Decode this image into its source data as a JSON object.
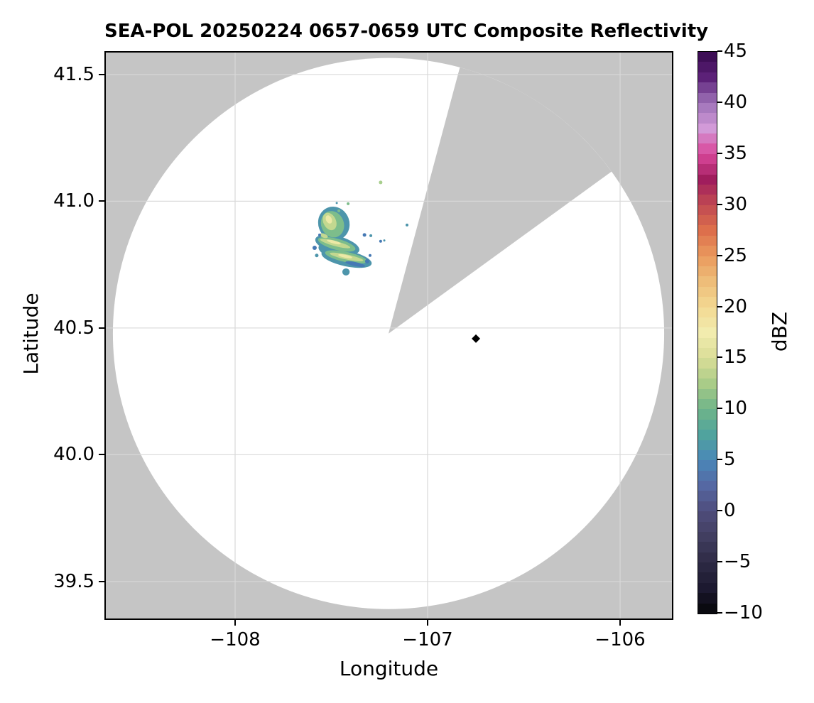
{
  "figure": {
    "title": "SEA-POL 20250224 0657-0659 UTC Composite Reflectivity",
    "xlabel": "Longitude",
    "ylabel": "Latitude",
    "scan_background_color": "#ffffff",
    "no_data_color": "#c5c5c5",
    "grid_color": "#d9d9d9",
    "border_color": "#000000"
  },
  "axes": {
    "x_ticks": [
      {
        "label": "−108",
        "value": -108
      },
      {
        "label": "−107",
        "value": -107
      },
      {
        "label": "−106",
        "value": -106
      }
    ],
    "y_ticks": [
      {
        "label": "41.5",
        "value": 41.5
      },
      {
        "label": "41.0",
        "value": 41.0
      },
      {
        "label": "40.5",
        "value": 40.5
      },
      {
        "label": "40.0",
        "value": 40.0
      },
      {
        "label": "39.5",
        "value": 39.5
      }
    ]
  },
  "colorbar": {
    "label": "dBZ",
    "min": -10,
    "max": 45,
    "ticks": [
      {
        "label": "45",
        "value": 45
      },
      {
        "label": "40",
        "value": 40
      },
      {
        "label": "35",
        "value": 35
      },
      {
        "label": "30",
        "value": 30
      },
      {
        "label": "25",
        "value": 25
      },
      {
        "label": "20",
        "value": 20
      },
      {
        "label": "15",
        "value": 15
      },
      {
        "label": "10",
        "value": 10
      },
      {
        "label": "5",
        "value": 5
      },
      {
        "label": "0",
        "value": 0
      },
      {
        "label": "−5",
        "value": -5
      },
      {
        "label": "−10",
        "value": -10
      }
    ],
    "stops": [
      {
        "v": 45,
        "c": "#36094e"
      },
      {
        "v": 42.5,
        "c": "#5c2178"
      },
      {
        "v": 40,
        "c": "#9e72b8"
      },
      {
        "v": 37.5,
        "c": "#d29ad8"
      },
      {
        "v": 35,
        "c": "#d9479b"
      },
      {
        "v": 32.5,
        "c": "#a01d5d"
      },
      {
        "v": 30,
        "c": "#c04a52"
      },
      {
        "v": 27.5,
        "c": "#dd6f4c"
      },
      {
        "v": 25,
        "c": "#ea9a5e"
      },
      {
        "v": 22.5,
        "c": "#eebd79"
      },
      {
        "v": 20,
        "c": "#f3d992"
      },
      {
        "v": 17.5,
        "c": "#f2ecae"
      },
      {
        "v": 15,
        "c": "#dadd97"
      },
      {
        "v": 12.5,
        "c": "#a9cc88"
      },
      {
        "v": 10,
        "c": "#6fb489"
      },
      {
        "v": 7.5,
        "c": "#50a39e"
      },
      {
        "v": 5,
        "c": "#4a87b8"
      },
      {
        "v": 2.5,
        "c": "#5568a3"
      },
      {
        "v": 0,
        "c": "#4f4d7c"
      },
      {
        "v": -2.5,
        "c": "#413e60"
      },
      {
        "v": -5,
        "c": "#2e2a45"
      },
      {
        "v": -7.5,
        "c": "#1c1930"
      },
      {
        "v": -10,
        "c": "#060608"
      }
    ]
  },
  "chart_data": {
    "type": "heatmap",
    "title": "SEA-POL 20250224 0657-0659 UTC Composite Reflectivity",
    "xlabel": "Longitude",
    "ylabel": "Latitude",
    "xlim": [
      -108.68,
      -105.72
    ],
    "ylim": [
      39.35,
      41.59
    ],
    "grid": true,
    "colorbar_label": "dBZ",
    "colorbar_range": [
      -10,
      45
    ],
    "radar": {
      "center_lon": -107.203,
      "center_lat": 40.478,
      "range_deg_lon": 1.432,
      "range_deg_lat": 1.087,
      "blanked_sector_azimuth_deg": [
        15,
        54
      ]
    },
    "site_marker": {
      "lon": -106.749,
      "lat": 40.458
    },
    "echo_region": {
      "lon_range": [
        -107.61,
        -107.21
      ],
      "lat_range": [
        40.7,
        41.0
      ],
      "max_dbz": 17,
      "typical_dbz_range": [
        4,
        17
      ]
    },
    "echo_layers": [
      {
        "name": "teal-base",
        "dbz": 6,
        "color": "#4d95ab",
        "ellipses": [
          {
            "lon": -107.487,
            "lat": 40.912,
            "rlon": 0.081,
            "rlat": 0.067,
            "rot": -20
          },
          {
            "lon": -107.469,
            "lat": 40.828,
            "rlon": 0.118,
            "rlat": 0.034,
            "rot": 15
          },
          {
            "lon": -107.421,
            "lat": 40.774,
            "rlon": 0.133,
            "rlat": 0.031,
            "rot": 12
          },
          {
            "lon": -107.517,
            "lat": 40.808,
            "rlon": 0.052,
            "rlat": 0.022,
            "rot": 20
          },
          {
            "lon": -107.424,
            "lat": 40.721,
            "rlon": 0.019,
            "rlat": 0.014,
            "rot": 0
          }
        ]
      },
      {
        "name": "green-mid",
        "dbz": 10,
        "color": "#7dbd8b",
        "ellipses": [
          {
            "lon": -107.494,
            "lat": 40.909,
            "rlon": 0.059,
            "rlat": 0.053,
            "rot": -20
          },
          {
            "lon": -107.472,
            "lat": 40.83,
            "rlon": 0.1,
            "rlat": 0.022,
            "rot": 15
          },
          {
            "lon": -107.424,
            "lat": 40.78,
            "rlon": 0.111,
            "rlat": 0.02,
            "rot": 12
          }
        ]
      },
      {
        "name": "yellow-green-streaks",
        "dbz": 14,
        "color": "#c3d890",
        "ellipses": [
          {
            "lon": -107.509,
            "lat": 40.92,
            "rlon": 0.033,
            "rlat": 0.036,
            "rot": -25
          },
          {
            "lon": -107.48,
            "lat": 40.833,
            "rlon": 0.081,
            "rlat": 0.01,
            "rot": 15
          },
          {
            "lon": -107.421,
            "lat": 40.78,
            "rlon": 0.089,
            "rlat": 0.01,
            "rot": 12
          },
          {
            "lon": -107.539,
            "lat": 40.864,
            "rlon": 0.022,
            "rlat": 0.008,
            "rot": 20
          }
        ]
      },
      {
        "name": "pale-yellow-cores",
        "dbz": 17,
        "color": "#ece9a6",
        "ellipses": [
          {
            "lon": -107.487,
            "lat": 40.839,
            "rlon": 0.037,
            "rlat": 0.006,
            "rot": 15
          },
          {
            "lon": -107.428,
            "lat": 40.783,
            "rlon": 0.037,
            "rlat": 0.006,
            "rot": 12
          },
          {
            "lon": -107.513,
            "lat": 40.928,
            "rlon": 0.015,
            "rlat": 0.017,
            "rot": -25
          }
        ]
      },
      {
        "name": "blue-fringe",
        "dbz": 4,
        "color": "#4679b4",
        "ellipses": [
          {
            "lon": -107.376,
            "lat": 40.752,
            "rlon": 0.052,
            "rlat": 0.008,
            "rot": 12
          }
        ]
      }
    ],
    "echo_dots": [
      {
        "lon": -107.328,
        "lat": 40.867,
        "r": 2.5,
        "color": "#4679b4"
      },
      {
        "lon": -107.244,
        "lat": 40.842,
        "r": 2.0,
        "color": "#4679b4"
      },
      {
        "lon": -107.314,
        "lat": 40.763,
        "r": 3.0,
        "color": "#4679b4"
      },
      {
        "lon": -107.343,
        "lat": 40.746,
        "r": 2.5,
        "color": "#4679b4"
      },
      {
        "lon": -107.299,
        "lat": 40.786,
        "r": 2.0,
        "color": "#4679b4"
      },
      {
        "lon": -107.424,
        "lat": 40.718,
        "r": 2.5,
        "color": "#4d95ab"
      },
      {
        "lon": -107.587,
        "lat": 40.816,
        "r": 3.0,
        "color": "#4679b4"
      },
      {
        "lon": -107.576,
        "lat": 40.786,
        "r": 2.5,
        "color": "#4d95ab"
      },
      {
        "lon": -107.561,
        "lat": 40.867,
        "r": 2.0,
        "color": "#4679b4"
      },
      {
        "lon": -107.461,
        "lat": 40.962,
        "r": 2.0,
        "color": "#7dbd8b"
      },
      {
        "lon": -107.413,
        "lat": 40.99,
        "r": 2.0,
        "color": "#7dbd8b"
      },
      {
        "lon": -107.472,
        "lat": 40.993,
        "r": 1.5,
        "color": "#4d95ab"
      },
      {
        "lon": -107.244,
        "lat": 41.074,
        "r": 2.5,
        "color": "#a8cf8e"
      },
      {
        "lon": -107.107,
        "lat": 40.906,
        "r": 2.0,
        "color": "#4d95ab"
      },
      {
        "lon": -107.295,
        "lat": 40.864,
        "r": 2.0,
        "color": "#4d95ab"
      },
      {
        "lon": -107.225,
        "lat": 40.845,
        "r": 1.5,
        "color": "#4d95ab"
      }
    ]
  }
}
